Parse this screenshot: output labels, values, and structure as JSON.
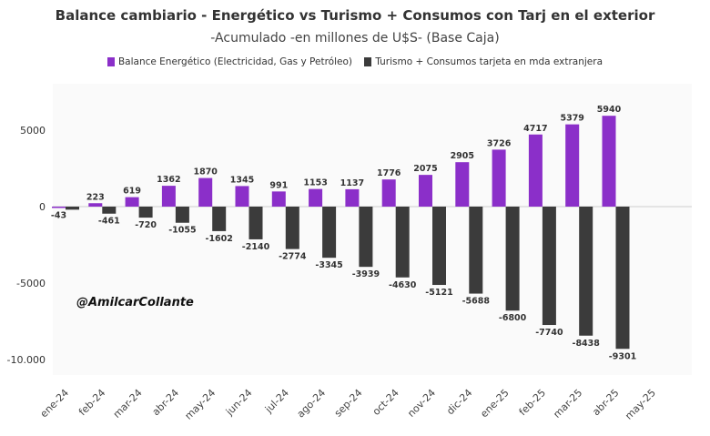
{
  "chart_data": {
    "type": "bar",
    "title": "Balance cambiario - Energético vs Turismo + Consumos con Tarj en el exterior",
    "subtitle": "-Acumulado -en millones de U$S- (Base Caja)",
    "watermark": "@AmilcarCollante",
    "categories": [
      "ene-24",
      "feb-24",
      "mar-24",
      "abr-24",
      "may-24",
      "jun-24",
      "jul-24",
      "ago-24",
      "sep-24",
      "oct-24",
      "nov-24",
      "dic-24",
      "ene-25",
      "feb-25",
      "mar-25",
      "abr-25",
      "may-25"
    ],
    "series": [
      {
        "name": "Balance Energético (Electricidad, Gas y Petróleo)",
        "color": "#8b2fc9",
        "values": [
          -43,
          223,
          619,
          1362,
          1870,
          1345,
          991,
          1153,
          1137,
          1776,
          2075,
          2905,
          3726,
          4717,
          5379,
          5940,
          null
        ],
        "labels": [
          "-43",
          "223",
          "619",
          "1362",
          "1870",
          "1345",
          "991",
          "1153",
          "1137",
          "1776",
          "2075",
          "2905",
          "3726",
          "4717",
          "5379",
          "5940",
          ""
        ]
      },
      {
        "name": "Turismo + Consumos tarjeta en mda extranjera",
        "color": "#3b3b3b",
        "values": [
          -200,
          -461,
          -720,
          -1055,
          -1602,
          -2140,
          -2774,
          -3345,
          -3939,
          -4630,
          -5121,
          -5688,
          -6800,
          -7740,
          -8438,
          -9301,
          null
        ],
        "labels": [
          "",
          "-461",
          "-720",
          "-1055",
          "-1602",
          "-2140",
          "-2774",
          "-3345",
          "-3939",
          "-4630",
          "-5121",
          "-5688",
          "-6800",
          "-7740",
          "-8438",
          "-9301",
          ""
        ]
      }
    ],
    "yticks": [
      5000,
      0,
      -5000,
      -10000
    ],
    "ytick_labels": [
      "5000",
      "0",
      "-5000",
      "-10.000"
    ],
    "ylim": [
      -10800,
      8000
    ],
    "grid": false,
    "legend_position": "top-center"
  }
}
